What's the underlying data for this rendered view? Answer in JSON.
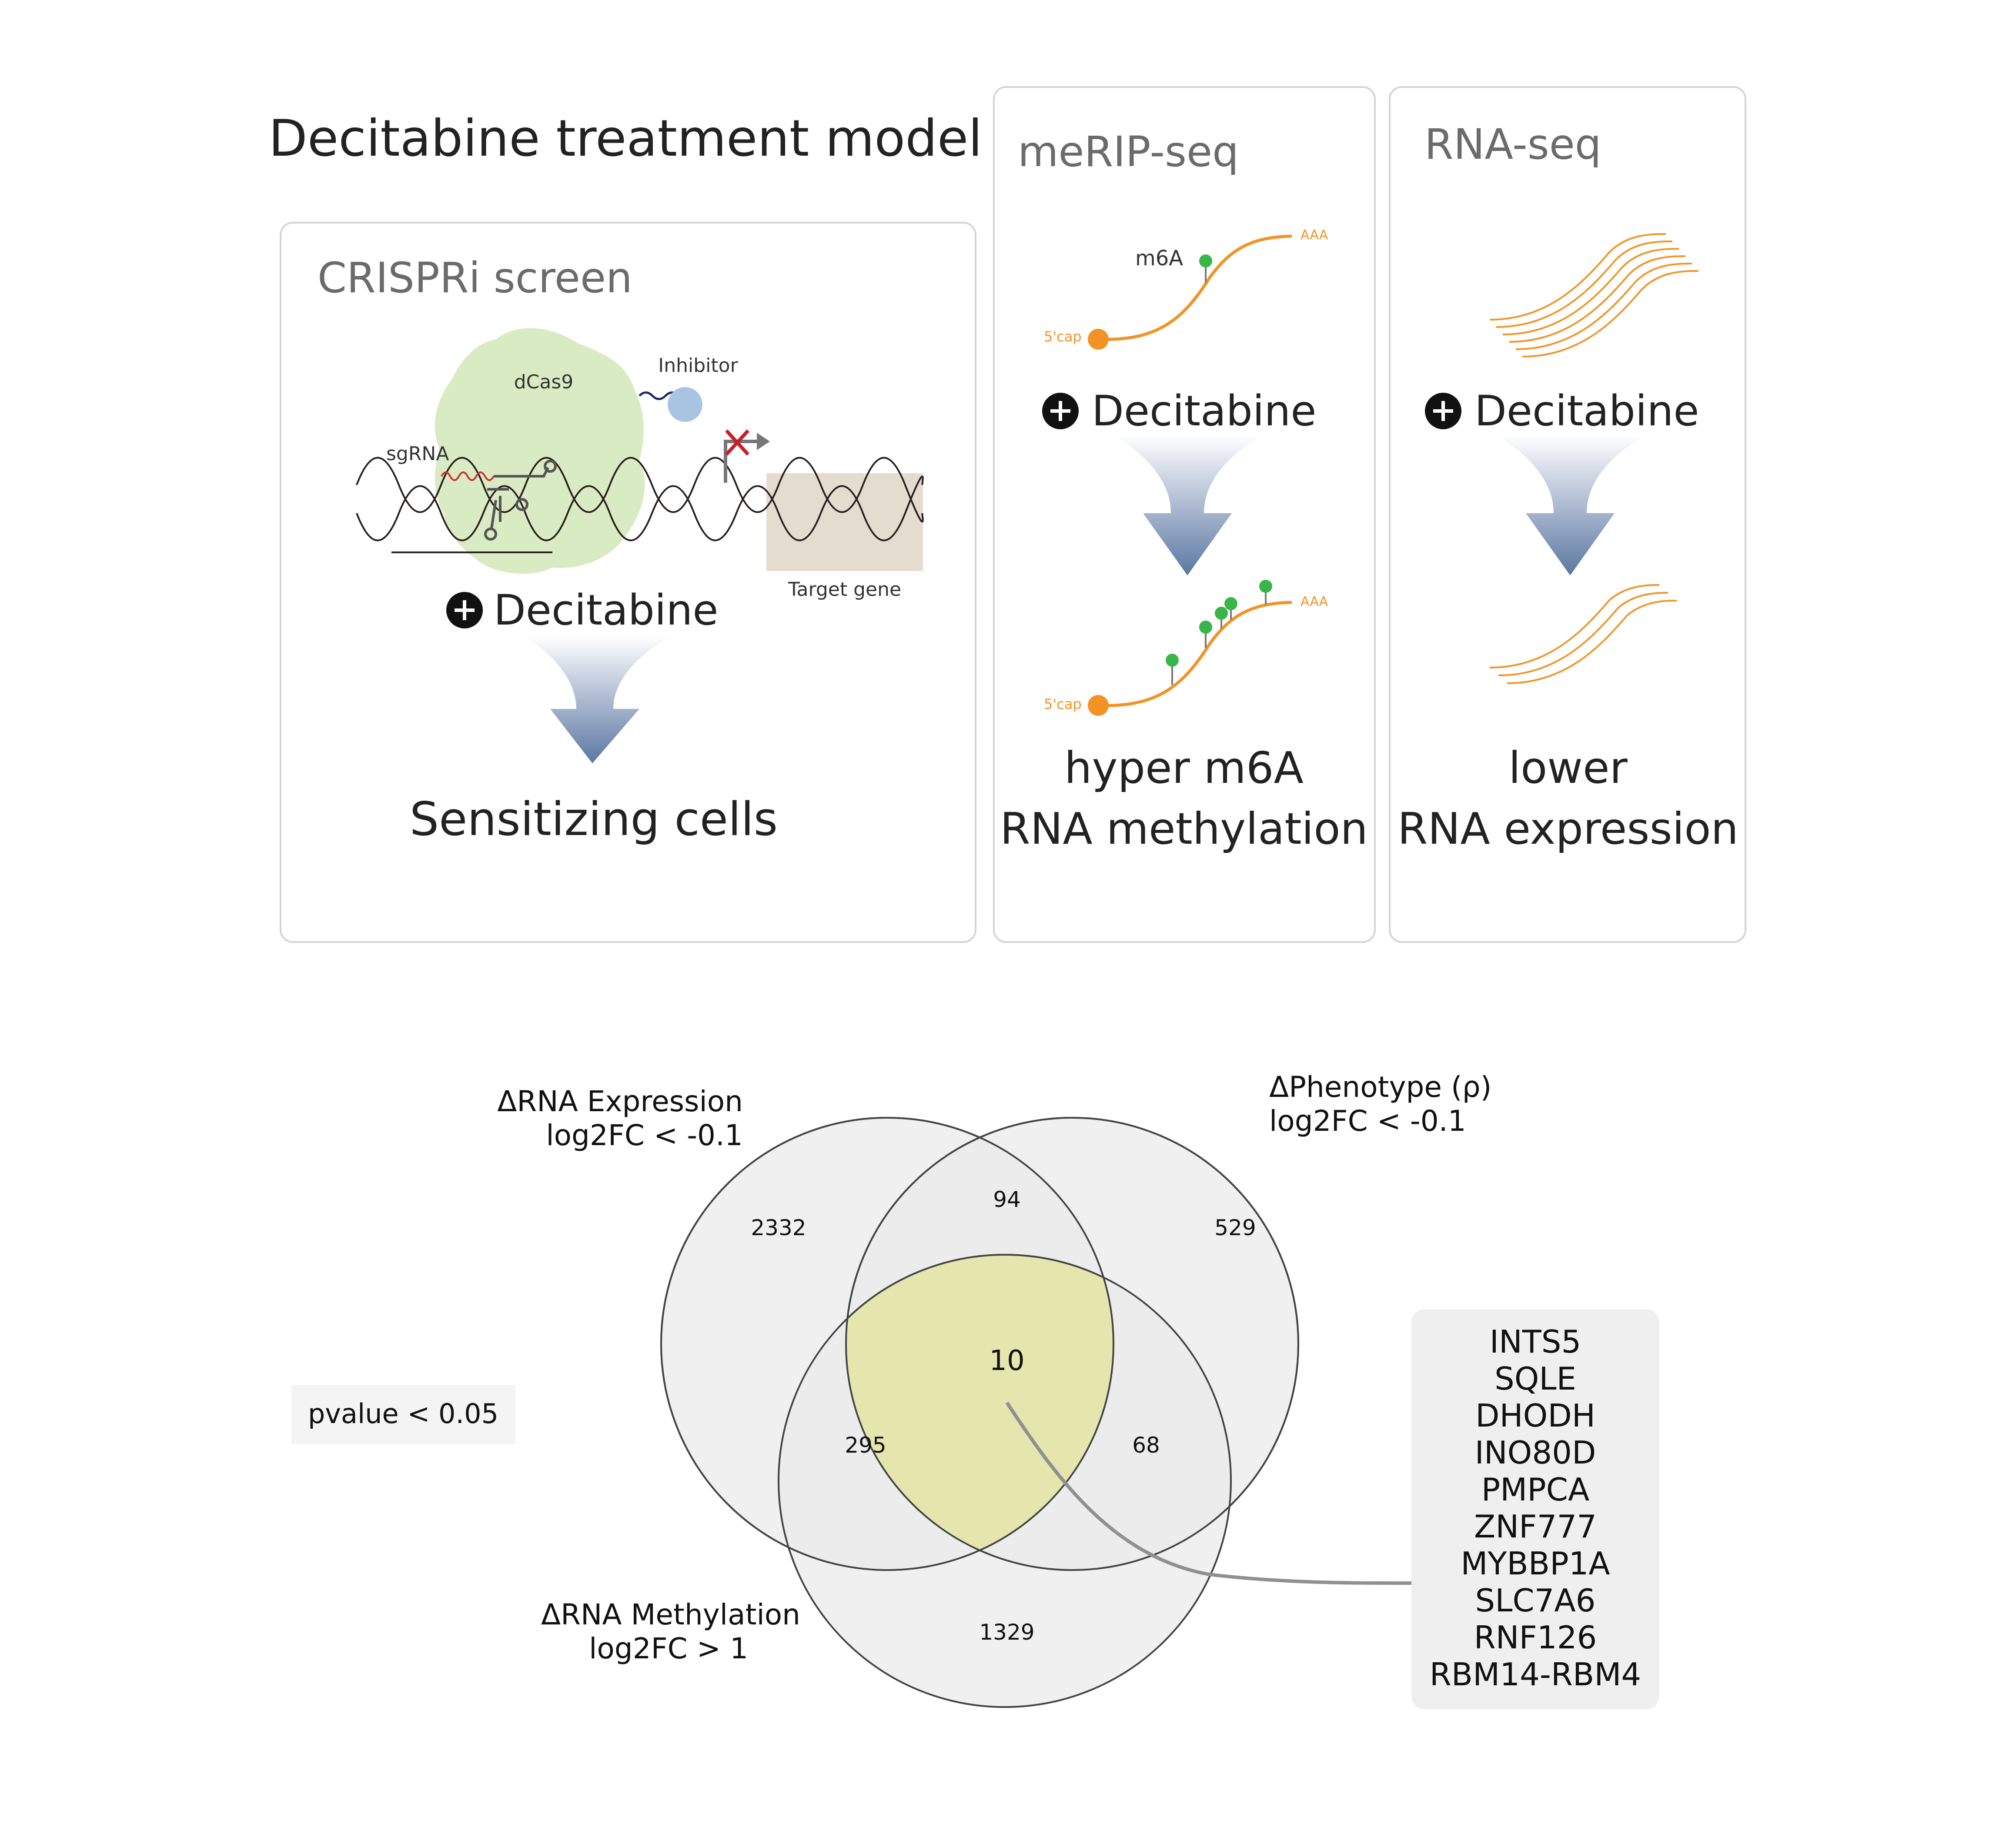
{
  "model": {
    "title": "Decitabine treatment model",
    "crispri": {
      "title": "CRISPRi screen",
      "dcas9_label": "dCas9",
      "inhibitor_label": "Inhibitor",
      "sgrna_label": "sgRNA",
      "target_gene_label": "Target gene",
      "treatment_label": "Decitabine",
      "outcome": "Sensitizing cells"
    },
    "merip": {
      "title": "meRIP-seq",
      "m6a_label": "m6A",
      "cap_label": "5'cap",
      "polya_label": "AAA",
      "treatment_label": "Decitabine",
      "outcome_line1": "hyper m6A",
      "outcome_line2": "RNA methylation"
    },
    "rnaseq": {
      "title": "RNA-seq",
      "treatment_label": "Decitabine",
      "outcome_line1": "lower",
      "outcome_line2": "RNA expression"
    }
  },
  "venn": {
    "sets": {
      "expression": {
        "line1": "ΔRNA Expression",
        "line2": "log2FC < -0.1"
      },
      "phenotype": {
        "line1": "ΔPhenotype (ρ)",
        "line2": "log2FC < -0.1"
      },
      "methylation": {
        "line1": "ΔRNA Methylation",
        "line2": "log2FC > 1"
      }
    },
    "counts": {
      "expression_only": "2332",
      "phenotype_only": "529",
      "methylation_only": "1329",
      "expression_phenotype": "94",
      "expression_methylation": "295",
      "phenotype_methylation": "68",
      "all_three": "10"
    },
    "pvalue_label": "pvalue < 0.05",
    "genes": [
      "INTS5",
      "SQLE",
      "DHODH",
      "INO80D",
      "PMPCA",
      "ZNF777",
      "MYBBP1A",
      "SLC7A6",
      "RNF126",
      "RBM14-RBM4"
    ],
    "colors": {
      "circle_fill": "#ebebeb",
      "intersection_fill": "#e5e6ae",
      "gene_box_fill": "#efefef"
    }
  },
  "colors": {
    "rna_orange": "#f39325",
    "m6a_green": "#3ab54a",
    "dcas9_green": "#d8ebc2",
    "inhibitor_blue": "#a8c4e2",
    "target_box": "#e5dcd0",
    "arrow_blue": "#5b78a3",
    "panel_border": "#d4d4d4",
    "title_gray": "#6b6b6b"
  }
}
